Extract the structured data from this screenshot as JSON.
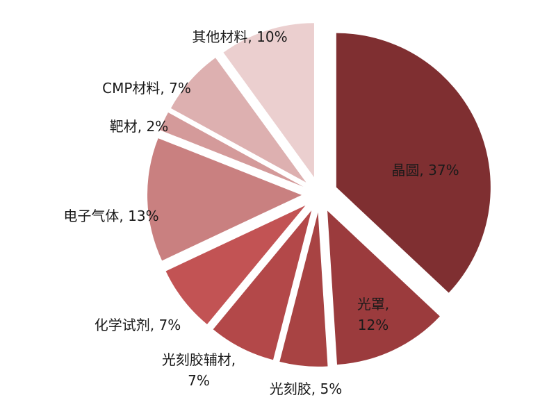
{
  "chart_data": {
    "type": "pie",
    "slices": [
      {
        "name": "晶圆",
        "value": 37,
        "label": "晶圆, 37%",
        "color": "#7f2f31"
      },
      {
        "name": "光罩",
        "value": 12,
        "label": "光罩,|12%",
        "color": "#9b3b3d"
      },
      {
        "name": "光刻胶",
        "value": 5,
        "label": "光刻胶, 5%",
        "color": "#a84343"
      },
      {
        "name": "光刻胶辅材",
        "value": 7,
        "label": "光刻胶辅材,|7%",
        "color": "#b34849"
      },
      {
        "name": "化学试剂",
        "value": 7,
        "label": "化学试剂, 7%",
        "color": "#c25354"
      },
      {
        "name": "电子气体",
        "value": 13,
        "label": "电子气体, 13%",
        "color": "#c98080"
      },
      {
        "name": "靶材",
        "value": 2,
        "label": "靶材, 2%",
        "color": "#d49a9a"
      },
      {
        "name": "CMP材料",
        "value": 7,
        "label": "CMP材料, 7%",
        "color": "#ddb0b0"
      },
      {
        "name": "其他材料",
        "value": 10,
        "label": "其他材料, 10%",
        "color": "#ebcfcf"
      }
    ]
  }
}
